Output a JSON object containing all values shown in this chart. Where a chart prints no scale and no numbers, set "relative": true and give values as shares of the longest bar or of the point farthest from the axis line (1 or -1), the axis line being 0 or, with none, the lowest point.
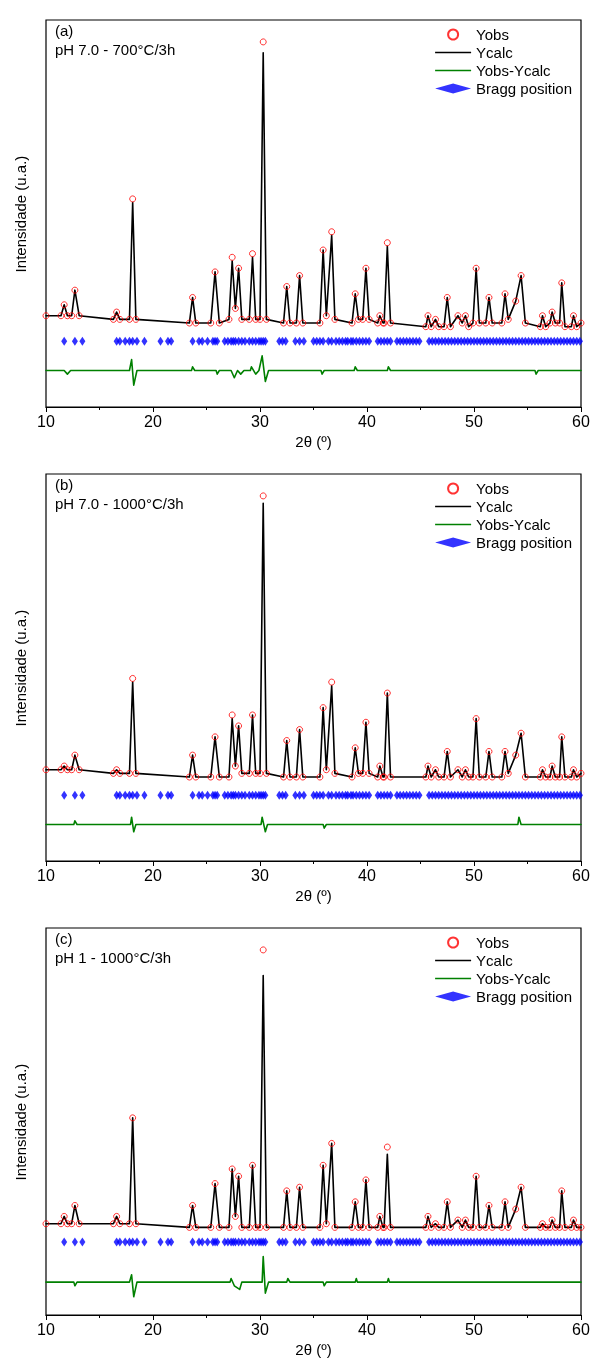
{
  "chart_data": [
    {
      "type": "line",
      "title": "(a)",
      "subtitle": "pH 7.0 - 700°C/3h",
      "xlabel": "2θ (º)",
      "ylabel": "Intensidade (u.a.)",
      "relative": true,
      "xlim": [
        10,
        60
      ],
      "xticks": [
        10,
        20,
        30,
        40,
        50,
        60
      ],
      "tick_labels": "x",
      "grid": false,
      "legend": "top right",
      "x": [
        10.0,
        11.4,
        11.7,
        12.0,
        12.4,
        12.7,
        13.1,
        16.3,
        16.6,
        16.9,
        17.8,
        18.1,
        18.4,
        23.4,
        23.7,
        24.0,
        25.4,
        25.8,
        26.2,
        27.1,
        27.4,
        27.7,
        28.0,
        28.3,
        29.0,
        29.3,
        29.6,
        30.0,
        30.3,
        30.6,
        32.2,
        32.5,
        32.8,
        33.4,
        33.7,
        34.0,
        35.6,
        35.9,
        36.2,
        36.7,
        37.0,
        38.6,
        38.9,
        39.2,
        39.6,
        39.9,
        40.2,
        41.0,
        41.2,
        41.5,
        41.6,
        41.9,
        42.2,
        45.5,
        45.7,
        46.0,
        46.4,
        46.7,
        47.2,
        47.5,
        47.8,
        48.5,
        48.9,
        49.2,
        49.5,
        49.9,
        50.2,
        50.5,
        51.1,
        51.4,
        51.7,
        52.6,
        52.9,
        53.2,
        53.9,
        54.4,
        54.8,
        56.2,
        56.4,
        56.7,
        57.1,
        57.3,
        57.6,
        58.0,
        58.2,
        58.5,
        59.1,
        59.3,
        59.6,
        60.0
      ],
      "series": [
        {
          "name": "Yobs",
          "type": "scatter",
          "marker": "circle",
          "color": "#ff0000",
          "values": [
            0.25,
            0.25,
            0.28,
            0.25,
            0.25,
            0.32,
            0.25,
            0.24,
            0.26,
            0.24,
            0.24,
            0.57,
            0.24,
            0.23,
            0.3,
            0.23,
            0.23,
            0.37,
            0.23,
            0.24,
            0.41,
            0.27,
            0.38,
            0.24,
            0.24,
            0.42,
            0.24,
            0.24,
            1.0,
            0.24,
            0.23,
            0.33,
            0.23,
            0.23,
            0.36,
            0.23,
            0.23,
            0.43,
            0.25,
            0.48,
            0.24,
            0.23,
            0.31,
            0.24,
            0.24,
            0.38,
            0.24,
            0.23,
            0.25,
            0.23,
            0.23,
            0.45,
            0.23,
            0.22,
            0.25,
            0.22,
            0.24,
            0.22,
            0.22,
            0.3,
            0.22,
            0.25,
            0.23,
            0.25,
            0.22,
            0.23,
            0.38,
            0.23,
            0.23,
            0.3,
            0.23,
            0.23,
            0.31,
            0.24,
            0.29,
            0.36,
            0.23,
            0.22,
            0.25,
            0.22,
            0.23,
            0.26,
            0.23,
            0.23,
            0.34,
            0.22,
            0.22,
            0.25,
            0.22,
            0.23
          ]
        },
        {
          "name": "Ycalc",
          "marker": "none",
          "line_style": "solid",
          "color": "#000000",
          "values": [
            0.25,
            0.25,
            0.28,
            0.25,
            0.25,
            0.32,
            0.25,
            0.24,
            0.26,
            0.24,
            0.24,
            0.56,
            0.24,
            0.23,
            0.3,
            0.23,
            0.23,
            0.37,
            0.23,
            0.24,
            0.4,
            0.27,
            0.38,
            0.24,
            0.24,
            0.41,
            0.24,
            0.24,
            0.97,
            0.24,
            0.23,
            0.33,
            0.23,
            0.23,
            0.36,
            0.23,
            0.23,
            0.43,
            0.25,
            0.47,
            0.24,
            0.23,
            0.31,
            0.24,
            0.24,
            0.38,
            0.24,
            0.23,
            0.25,
            0.23,
            0.23,
            0.44,
            0.23,
            0.22,
            0.25,
            0.22,
            0.24,
            0.22,
            0.22,
            0.3,
            0.22,
            0.25,
            0.23,
            0.25,
            0.22,
            0.23,
            0.38,
            0.23,
            0.23,
            0.3,
            0.23,
            0.23,
            0.31,
            0.24,
            0.29,
            0.36,
            0.23,
            0.22,
            0.25,
            0.22,
            0.23,
            0.26,
            0.23,
            0.23,
            0.34,
            0.22,
            0.22,
            0.25,
            0.22,
            0.23
          ]
        },
        {
          "name": "Yobs-Ycalc",
          "marker": "none",
          "line_style": "solid",
          "color": "#008000",
          "x": [
            10,
            11.7,
            12.0,
            12.3,
            17.8,
            18.0,
            18.2,
            18.5,
            23.6,
            23.7,
            23.9,
            25.9,
            26.0,
            26.2,
            27.2,
            27.3,
            27.6,
            27.9,
            28.2,
            28.5,
            29.1,
            29.2,
            29.6,
            29.9,
            30.2,
            30.5,
            30.8,
            32.9,
            33,
            35.7,
            35.8,
            36.0,
            36.2,
            38.8,
            38.9,
            39.1,
            41.9,
            42.0,
            42.2,
            55.7,
            55.8,
            56,
            60
          ],
          "values": [
            0.1,
            0.1,
            0.09,
            0.1,
            0.1,
            0.13,
            0.06,
            0.1,
            0.1,
            0.11,
            0.1,
            0.1,
            0.09,
            0.1,
            0.1,
            0.1,
            0.08,
            0.1,
            0.09,
            0.1,
            0.1,
            0.11,
            0.09,
            0.1,
            0.14,
            0.07,
            0.1,
            0.1,
            0.1,
            0.1,
            0.09,
            0.1,
            0.1,
            0.1,
            0.11,
            0.1,
            0.1,
            0.11,
            0.1,
            0.1,
            0.09,
            0.1,
            0.1
          ]
        },
        {
          "name": "Bragg position",
          "type": "scatter",
          "marker": "diamond",
          "color": "#0000ff",
          "x": [
            11.7,
            12.7,
            13.4,
            16.6,
            16.9,
            17.4,
            17.8,
            18.1,
            18.5,
            19.2,
            20.7,
            21.4,
            21.7,
            23.7,
            24.3,
            24.6,
            25.1,
            25.6,
            25.8,
            26.0,
            26.7,
            27.0,
            27.3,
            27.5,
            27.7,
            28.0,
            28.3,
            28.6,
            29.0,
            29.3,
            29.6,
            29.9,
            30.1,
            30.3,
            30.5,
            31.8,
            32.1,
            32.4,
            33.3,
            33.7,
            34.1,
            35.0,
            35.3,
            35.6,
            35.9,
            36.4,
            36.7,
            37.1,
            37.4,
            37.7,
            38.0,
            38.2,
            38.5,
            38.7,
            39.0,
            39.3,
            39.6,
            39.9,
            40.2,
            41.0,
            41.3,
            41.6,
            41.9,
            42.2,
            42.8,
            43.1,
            43.4,
            43.7,
            44.0,
            44.3,
            44.6,
            44.9,
            45.8,
            46.1,
            46.4,
            46.7,
            47.0,
            47.3,
            47.6,
            47.9,
            48.2,
            48.5,
            48.8,
            49.1,
            49.4,
            49.7,
            50.0,
            50.3,
            50.6,
            50.9,
            51.2,
            51.5,
            51.8,
            52.1,
            52.4,
            52.7,
            53.0,
            53.3,
            53.6,
            53.9,
            54.2,
            54.5,
            54.8,
            55.1,
            55.4,
            55.7,
            56.0,
            56.3,
            56.6,
            56.9,
            57.2,
            57.5,
            57.8,
            58.1,
            58.4,
            58.7,
            59.0,
            59.3,
            59.6,
            59.9
          ],
          "values": [
            0.18,
            0.18,
            0.18,
            0.18,
            0.18,
            0.18,
            0.18,
            0.18,
            0.18,
            0.18,
            0.18,
            0.18,
            0.18,
            0.18,
            0.18,
            0.18,
            0.18,
            0.18,
            0.18,
            0.18,
            0.18,
            0.18,
            0.18,
            0.18,
            0.18,
            0.18,
            0.18,
            0.18,
            0.18,
            0.18,
            0.18,
            0.18,
            0.18,
            0.18,
            0.18,
            0.18,
            0.18,
            0.18,
            0.18,
            0.18,
            0.18,
            0.18,
            0.18,
            0.18,
            0.18,
            0.18,
            0.18,
            0.18,
            0.18,
            0.18,
            0.18,
            0.18,
            0.18,
            0.18,
            0.18,
            0.18,
            0.18,
            0.18,
            0.18,
            0.18,
            0.18,
            0.18,
            0.18,
            0.18,
            0.18,
            0.18,
            0.18,
            0.18,
            0.18,
            0.18,
            0.18,
            0.18,
            0.18,
            0.18,
            0.18,
            0.18,
            0.18,
            0.18,
            0.18,
            0.18,
            0.18,
            0.18,
            0.18,
            0.18,
            0.18,
            0.18,
            0.18,
            0.18,
            0.18,
            0.18,
            0.18,
            0.18,
            0.18,
            0.18,
            0.18,
            0.18,
            0.18,
            0.18,
            0.18,
            0.18,
            0.18,
            0.18,
            0.18,
            0.18,
            0.18,
            0.18,
            0.18,
            0.18,
            0.18,
            0.18,
            0.18,
            0.18,
            0.18,
            0.18,
            0.18,
            0.18,
            0.18,
            0.18,
            0.18,
            0.18
          ]
        }
      ]
    },
    {
      "type": "line",
      "title": "(b)",
      "subtitle": "pH 7.0 - 1000°C/3h",
      "xlabel": "2θ (º)",
      "ylabel": "Intensidade (u.a.)",
      "relative": true,
      "xlim": [
        10,
        60
      ],
      "xticks": [
        10,
        20,
        30,
        40,
        50,
        60
      ],
      "tick_labels": "x",
      "grid": false,
      "legend": "top right",
      "x": [
        10.0,
        11.4,
        11.7,
        12.0,
        12.4,
        12.7,
        13.1,
        16.3,
        16.6,
        16.9,
        17.8,
        18.1,
        18.4,
        23.4,
        23.7,
        24.0,
        25.4,
        25.8,
        26.2,
        27.1,
        27.4,
        27.7,
        28.0,
        28.3,
        29.0,
        29.3,
        29.6,
        30.0,
        30.3,
        30.6,
        32.2,
        32.5,
        32.8,
        33.4,
        33.7,
        34.0,
        35.6,
        35.9,
        36.2,
        36.7,
        37.0,
        38.6,
        38.9,
        39.2,
        39.6,
        39.9,
        40.2,
        41.0,
        41.2,
        41.5,
        41.6,
        41.9,
        42.2,
        45.5,
        45.7,
        46.0,
        46.4,
        46.7,
        47.2,
        47.5,
        47.8,
        48.5,
        48.9,
        49.2,
        49.5,
        49.9,
        50.2,
        50.5,
        51.1,
        51.4,
        51.7,
        52.6,
        52.9,
        53.2,
        53.9,
        54.4,
        54.8,
        56.2,
        56.4,
        56.7,
        57.1,
        57.3,
        57.6,
        58.0,
        58.2,
        58.5,
        59.1,
        59.3,
        59.6,
        60.0
      ],
      "series": [
        {
          "name": "Yobs",
          "type": "scatter",
          "marker": "circle",
          "color": "#ff0000",
          "values": [
            0.25,
            0.25,
            0.26,
            0.25,
            0.25,
            0.29,
            0.25,
            0.24,
            0.25,
            0.24,
            0.24,
            0.5,
            0.24,
            0.23,
            0.29,
            0.23,
            0.23,
            0.34,
            0.23,
            0.23,
            0.4,
            0.26,
            0.37,
            0.24,
            0.24,
            0.4,
            0.24,
            0.24,
            1.0,
            0.24,
            0.23,
            0.33,
            0.23,
            0.23,
            0.36,
            0.23,
            0.23,
            0.42,
            0.25,
            0.49,
            0.24,
            0.23,
            0.31,
            0.24,
            0.24,
            0.38,
            0.24,
            0.23,
            0.26,
            0.23,
            0.23,
            0.46,
            0.23,
            0.23,
            0.26,
            0.23,
            0.25,
            0.23,
            0.23,
            0.3,
            0.23,
            0.25,
            0.23,
            0.25,
            0.23,
            0.23,
            0.39,
            0.23,
            0.23,
            0.3,
            0.23,
            0.23,
            0.3,
            0.24,
            0.29,
            0.35,
            0.23,
            0.23,
            0.25,
            0.23,
            0.23,
            0.26,
            0.23,
            0.23,
            0.34,
            0.23,
            0.23,
            0.25,
            0.23,
            0.24
          ]
        },
        {
          "name": "Ycalc",
          "marker": "none",
          "line_style": "solid",
          "color": "#000000",
          "values": [
            0.25,
            0.25,
            0.26,
            0.25,
            0.25,
            0.29,
            0.25,
            0.24,
            0.25,
            0.24,
            0.24,
            0.49,
            0.24,
            0.23,
            0.29,
            0.23,
            0.23,
            0.34,
            0.23,
            0.23,
            0.39,
            0.26,
            0.37,
            0.24,
            0.24,
            0.4,
            0.24,
            0.24,
            0.98,
            0.24,
            0.23,
            0.33,
            0.23,
            0.23,
            0.36,
            0.23,
            0.23,
            0.42,
            0.25,
            0.48,
            0.24,
            0.23,
            0.31,
            0.24,
            0.24,
            0.38,
            0.24,
            0.23,
            0.26,
            0.23,
            0.23,
            0.46,
            0.23,
            0.23,
            0.26,
            0.23,
            0.25,
            0.23,
            0.23,
            0.3,
            0.23,
            0.25,
            0.23,
            0.25,
            0.23,
            0.23,
            0.39,
            0.23,
            0.23,
            0.3,
            0.23,
            0.23,
            0.3,
            0.24,
            0.29,
            0.35,
            0.23,
            0.23,
            0.25,
            0.23,
            0.23,
            0.26,
            0.23,
            0.23,
            0.34,
            0.23,
            0.23,
            0.25,
            0.23,
            0.24
          ]
        },
        {
          "name": "Yobs-Ycalc",
          "marker": "none",
          "line_style": "solid",
          "color": "#008000",
          "x": [
            10,
            12.6,
            12.7,
            12.9,
            17.9,
            18.0,
            18.2,
            18.4,
            30.1,
            30.2,
            30.5,
            30.7,
            35.9,
            36.0,
            36.2,
            54.1,
            54.2,
            54.4,
            60
          ],
          "values": [
            0.1,
            0.1,
            0.11,
            0.1,
            0.1,
            0.12,
            0.08,
            0.1,
            0.1,
            0.12,
            0.08,
            0.1,
            0.1,
            0.09,
            0.1,
            0.1,
            0.12,
            0.1,
            0.1
          ]
        },
        {
          "name": "Bragg position",
          "type": "scatter",
          "marker": "diamond",
          "color": "#0000ff",
          "x": [
            11.7,
            12.7,
            13.4,
            16.6,
            16.9,
            17.4,
            17.8,
            18.1,
            18.5,
            19.2,
            20.7,
            21.4,
            21.7,
            23.7,
            24.3,
            24.6,
            25.1,
            25.6,
            25.8,
            26.0,
            26.7,
            27.0,
            27.3,
            27.5,
            27.7,
            28.0,
            28.3,
            28.6,
            29.0,
            29.3,
            29.6,
            29.9,
            30.1,
            30.3,
            30.5,
            31.8,
            32.1,
            32.4,
            33.3,
            33.7,
            34.1,
            35.0,
            35.3,
            35.6,
            35.9,
            36.4,
            36.7,
            37.1,
            37.4,
            37.7,
            38.0,
            38.2,
            38.5,
            38.7,
            39.0,
            39.3,
            39.6,
            39.9,
            40.2,
            41.0,
            41.3,
            41.6,
            41.9,
            42.2,
            42.8,
            43.1,
            43.4,
            43.7,
            44.0,
            44.3,
            44.6,
            44.9,
            45.8,
            46.1,
            46.4,
            46.7,
            47.0,
            47.3,
            47.6,
            47.9,
            48.2,
            48.5,
            48.8,
            49.1,
            49.4,
            49.7,
            50.0,
            50.3,
            50.6,
            50.9,
            51.2,
            51.5,
            51.8,
            52.1,
            52.4,
            52.7,
            53.0,
            53.3,
            53.6,
            53.9,
            54.2,
            54.5,
            54.8,
            55.1,
            55.4,
            55.7,
            56.0,
            56.3,
            56.6,
            56.9,
            57.2,
            57.5,
            57.8,
            58.1,
            58.4,
            58.7,
            59.0,
            59.3,
            59.6,
            59.9
          ],
          "values": [
            0.18,
            0.18,
            0.18,
            0.18,
            0.18,
            0.18,
            0.18,
            0.18,
            0.18,
            0.18,
            0.18,
            0.18,
            0.18,
            0.18,
            0.18,
            0.18,
            0.18,
            0.18,
            0.18,
            0.18,
            0.18,
            0.18,
            0.18,
            0.18,
            0.18,
            0.18,
            0.18,
            0.18,
            0.18,
            0.18,
            0.18,
            0.18,
            0.18,
            0.18,
            0.18,
            0.18,
            0.18,
            0.18,
            0.18,
            0.18,
            0.18,
            0.18,
            0.18,
            0.18,
            0.18,
            0.18,
            0.18,
            0.18,
            0.18,
            0.18,
            0.18,
            0.18,
            0.18,
            0.18,
            0.18,
            0.18,
            0.18,
            0.18,
            0.18,
            0.18,
            0.18,
            0.18,
            0.18,
            0.18,
            0.18,
            0.18,
            0.18,
            0.18,
            0.18,
            0.18,
            0.18,
            0.18,
            0.18,
            0.18,
            0.18,
            0.18,
            0.18,
            0.18,
            0.18,
            0.18,
            0.18,
            0.18,
            0.18,
            0.18,
            0.18,
            0.18,
            0.18,
            0.18,
            0.18,
            0.18,
            0.18,
            0.18,
            0.18,
            0.18,
            0.18,
            0.18,
            0.18,
            0.18,
            0.18,
            0.18,
            0.18,
            0.18,
            0.18,
            0.18,
            0.18,
            0.18,
            0.18,
            0.18,
            0.18,
            0.18,
            0.18,
            0.18,
            0.18,
            0.18,
            0.18,
            0.18,
            0.18,
            0.18,
            0.18,
            0.18
          ]
        }
      ]
    },
    {
      "type": "line",
      "title": "(c)",
      "subtitle": "pH 1 - 1000°C/3h",
      "xlabel": "2θ (º)",
      "ylabel": "Intensidade (u.a.)",
      "relative": true,
      "xlim": [
        10,
        60
      ],
      "xticks": [
        10,
        20,
        30,
        40,
        50,
        60
      ],
      "tick_labels": "x",
      "grid": false,
      "legend": "top right",
      "x": [
        10.0,
        11.4,
        11.7,
        12.0,
        12.4,
        12.7,
        13.1,
        16.3,
        16.6,
        16.9,
        17.8,
        18.1,
        18.4,
        23.4,
        23.7,
        24.0,
        25.4,
        25.8,
        26.2,
        27.1,
        27.4,
        27.7,
        28.0,
        28.3,
        29.0,
        29.3,
        29.6,
        30.0,
        30.3,
        30.6,
        32.2,
        32.5,
        32.8,
        33.4,
        33.7,
        34.0,
        35.6,
        35.9,
        36.2,
        36.7,
        37.0,
        38.6,
        38.9,
        39.2,
        39.6,
        39.9,
        40.2,
        41.0,
        41.2,
        41.5,
        41.6,
        41.9,
        42.2,
        45.5,
        45.7,
        46.0,
        46.4,
        46.7,
        47.2,
        47.5,
        47.8,
        48.5,
        48.9,
        49.2,
        49.5,
        49.9,
        50.2,
        50.5,
        51.1,
        51.4,
        51.7,
        52.6,
        52.9,
        53.2,
        53.9,
        54.4,
        54.8,
        56.2,
        56.4,
        56.7,
        57.1,
        57.3,
        57.6,
        58.0,
        58.2,
        58.5,
        59.1,
        59.3,
        59.6,
        60.0
      ],
      "series": [
        {
          "name": "Yobs",
          "type": "scatter",
          "marker": "circle",
          "color": "#ff0000",
          "values": [
            0.25,
            0.25,
            0.27,
            0.25,
            0.25,
            0.3,
            0.25,
            0.25,
            0.27,
            0.25,
            0.25,
            0.54,
            0.25,
            0.24,
            0.3,
            0.24,
            0.24,
            0.36,
            0.24,
            0.24,
            0.4,
            0.27,
            0.38,
            0.24,
            0.24,
            0.41,
            0.24,
            0.24,
            1.0,
            0.24,
            0.24,
            0.34,
            0.24,
            0.24,
            0.35,
            0.24,
            0.24,
            0.41,
            0.25,
            0.47,
            0.24,
            0.24,
            0.31,
            0.24,
            0.24,
            0.37,
            0.24,
            0.24,
            0.27,
            0.24,
            0.24,
            0.46,
            0.24,
            0.24,
            0.27,
            0.24,
            0.25,
            0.24,
            0.24,
            0.31,
            0.24,
            0.26,
            0.24,
            0.26,
            0.24,
            0.24,
            0.38,
            0.24,
            0.24,
            0.3,
            0.24,
            0.24,
            0.31,
            0.24,
            0.29,
            0.35,
            0.24,
            0.24,
            0.25,
            0.24,
            0.24,
            0.26,
            0.24,
            0.24,
            0.34,
            0.24,
            0.24,
            0.26,
            0.24,
            0.24
          ]
        },
        {
          "name": "Ycalc",
          "marker": "none",
          "line_style": "solid",
          "color": "#000000",
          "values": [
            0.25,
            0.25,
            0.27,
            0.25,
            0.25,
            0.3,
            0.25,
            0.25,
            0.27,
            0.25,
            0.25,
            0.54,
            0.25,
            0.24,
            0.3,
            0.24,
            0.24,
            0.36,
            0.24,
            0.24,
            0.4,
            0.27,
            0.38,
            0.24,
            0.24,
            0.41,
            0.24,
            0.24,
            0.93,
            0.24,
            0.24,
            0.34,
            0.24,
            0.24,
            0.35,
            0.24,
            0.24,
            0.41,
            0.25,
            0.47,
            0.24,
            0.24,
            0.31,
            0.24,
            0.24,
            0.37,
            0.24,
            0.24,
            0.27,
            0.24,
            0.24,
            0.44,
            0.24,
            0.24,
            0.27,
            0.24,
            0.25,
            0.24,
            0.24,
            0.31,
            0.24,
            0.26,
            0.24,
            0.26,
            0.24,
            0.24,
            0.38,
            0.24,
            0.24,
            0.3,
            0.24,
            0.24,
            0.31,
            0.24,
            0.29,
            0.35,
            0.24,
            0.24,
            0.25,
            0.24,
            0.24,
            0.26,
            0.24,
            0.24,
            0.34,
            0.24,
            0.24,
            0.26,
            0.24,
            0.24
          ]
        },
        {
          "name": "Yobs-Ycalc",
          "marker": "none",
          "line_style": "solid",
          "color": "#008000",
          "x": [
            10,
            12.6,
            12.7,
            12.9,
            17.7,
            17.8,
            18.0,
            18.2,
            18.5,
            27.2,
            27.3,
            27.6,
            28.1,
            28.3,
            30.1,
            30.2,
            30.3,
            30.5,
            30.8,
            32.5,
            32.6,
            32.8,
            35.9,
            36,
            36.2,
            38.9,
            39,
            39.1,
            41.9,
            42,
            42.1,
            60
          ],
          "values": [
            0.09,
            0.09,
            0.08,
            0.09,
            0.09,
            0.09,
            0.11,
            0.05,
            0.09,
            0.09,
            0.1,
            0.08,
            0.07,
            0.09,
            0.09,
            0.09,
            0.16,
            0.06,
            0.09,
            0.09,
            0.1,
            0.09,
            0.09,
            0.08,
            0.09,
            0.09,
            0.1,
            0.09,
            0.09,
            0.1,
            0.09,
            0.09
          ]
        },
        {
          "name": "Bragg position",
          "type": "scatter",
          "marker": "diamond",
          "color": "#0000ff",
          "x": [
            11.7,
            12.7,
            13.4,
            16.6,
            16.9,
            17.4,
            17.8,
            18.1,
            18.5,
            19.2,
            20.7,
            21.4,
            21.7,
            23.7,
            24.3,
            24.6,
            25.1,
            25.6,
            25.8,
            26.0,
            26.7,
            27.0,
            27.3,
            27.5,
            27.7,
            28.0,
            28.3,
            28.6,
            29.0,
            29.3,
            29.6,
            29.9,
            30.1,
            30.3,
            30.5,
            31.8,
            32.1,
            32.4,
            33.3,
            33.7,
            34.1,
            35.0,
            35.3,
            35.6,
            35.9,
            36.4,
            36.7,
            37.1,
            37.4,
            37.7,
            38.0,
            38.2,
            38.5,
            38.7,
            39.0,
            39.3,
            39.6,
            39.9,
            40.2,
            41.0,
            41.3,
            41.6,
            41.9,
            42.2,
            42.8,
            43.1,
            43.4,
            43.7,
            44.0,
            44.3,
            44.6,
            44.9,
            45.8,
            46.1,
            46.4,
            46.7,
            47.0,
            47.3,
            47.6,
            47.9,
            48.2,
            48.5,
            48.8,
            49.1,
            49.4,
            49.7,
            50.0,
            50.3,
            50.6,
            50.9,
            51.2,
            51.5,
            51.8,
            52.1,
            52.4,
            52.7,
            53.0,
            53.3,
            53.6,
            53.9,
            54.2,
            54.5,
            54.8,
            55.1,
            55.4,
            55.7,
            56.0,
            56.3,
            56.6,
            56.9,
            57.2,
            57.5,
            57.8,
            58.1,
            58.4,
            58.7,
            59.0,
            59.3,
            59.6,
            59.9
          ],
          "values": [
            0.2,
            0.2,
            0.2,
            0.2,
            0.2,
            0.2,
            0.2,
            0.2,
            0.2,
            0.2,
            0.2,
            0.2,
            0.2,
            0.2,
            0.2,
            0.2,
            0.2,
            0.2,
            0.2,
            0.2,
            0.2,
            0.2,
            0.2,
            0.2,
            0.2,
            0.2,
            0.2,
            0.2,
            0.2,
            0.2,
            0.2,
            0.2,
            0.2,
            0.2,
            0.2,
            0.2,
            0.2,
            0.2,
            0.2,
            0.2,
            0.2,
            0.2,
            0.2,
            0.2,
            0.2,
            0.2,
            0.2,
            0.2,
            0.2,
            0.2,
            0.2,
            0.2,
            0.2,
            0.2,
            0.2,
            0.2,
            0.2,
            0.2,
            0.2,
            0.2,
            0.2,
            0.2,
            0.2,
            0.2,
            0.2,
            0.2,
            0.2,
            0.2,
            0.2,
            0.2,
            0.2,
            0.2,
            0.2,
            0.2,
            0.2,
            0.2,
            0.2,
            0.2,
            0.2,
            0.2,
            0.2,
            0.2,
            0.2,
            0.2,
            0.2,
            0.2,
            0.2,
            0.2,
            0.2,
            0.2,
            0.2,
            0.2,
            0.2,
            0.2,
            0.2,
            0.2,
            0.2,
            0.2,
            0.2,
            0.2,
            0.2,
            0.2,
            0.2,
            0.2,
            0.2,
            0.2,
            0.2,
            0.2,
            0.2,
            0.2,
            0.2,
            0.2,
            0.2,
            0.2,
            0.2,
            0.2,
            0.2,
            0.2,
            0.2,
            0.2
          ]
        }
      ]
    }
  ]
}
